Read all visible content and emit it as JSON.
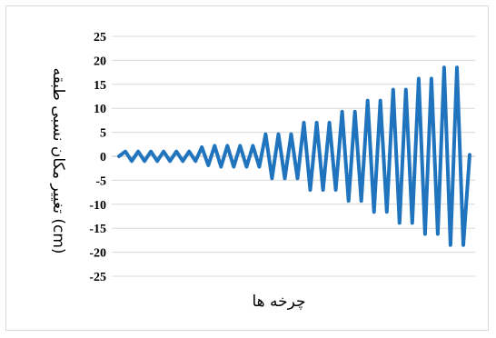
{
  "chart_data": {
    "type": "line",
    "title": "",
    "xlabel": "چرخه ها",
    "ylabel": "تغییر مکان نسبی طبقه (cm)",
    "ylim": [
      -25,
      25
    ],
    "yticks": [
      25,
      20,
      15,
      10,
      5,
      0,
      -5,
      -10,
      -15,
      -20,
      -25
    ],
    "grid": true,
    "line_color": "#1f74bd",
    "cycles": [
      {
        "amp": 1.0,
        "count": 6
      },
      {
        "amp": 1.9,
        "count": 1
      },
      {
        "amp": 2.2,
        "count": 4
      },
      {
        "amp": 4.6,
        "count": 3
      },
      {
        "amp": 7.0,
        "count": 3
      },
      {
        "amp": 9.3,
        "count": 2
      },
      {
        "amp": 11.6,
        "count": 2
      },
      {
        "amp": 13.9,
        "count": 2
      },
      {
        "amp": 16.2,
        "count": 2
      },
      {
        "amp": 18.5,
        "count": 2
      }
    ],
    "start_value": 0,
    "end_value": 0.3
  }
}
